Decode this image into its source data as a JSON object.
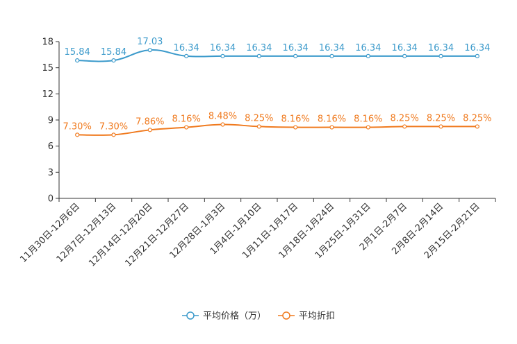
{
  "chart_data": {
    "type": "line",
    "title": "",
    "xlabel": "",
    "ylabel": "",
    "ylim": [
      0,
      18
    ],
    "yticks": [
      0,
      3,
      6,
      9,
      12,
      15,
      18
    ],
    "categories": [
      "11月30日-12月6日",
      "12月7日-12月13日",
      "12月14日-12月20日",
      "12月21日-12月27日",
      "12月28日-1月3日",
      "1月4日-1月10日",
      "1月11日-1月17日",
      "1月18日-1月24日",
      "1月25日-1月31日",
      "2月1日-2月7日",
      "2月8日-2月14日",
      "2月15日-2月21日"
    ],
    "series": [
      {
        "name": "平均价格（万）",
        "color": "#3b9acb",
        "values": [
          15.84,
          15.84,
          17.03,
          16.34,
          16.34,
          16.34,
          16.34,
          16.34,
          16.34,
          16.34,
          16.34,
          16.34
        ],
        "labels": [
          "15.84",
          "15.84",
          "17.03",
          "16.34",
          "16.34",
          "16.34",
          "16.34",
          "16.34",
          "16.34",
          "16.34",
          "16.34",
          "16.34"
        ]
      },
      {
        "name": "平均折扣",
        "color": "#f07a1e",
        "values": [
          7.3,
          7.3,
          7.86,
          8.16,
          8.48,
          8.25,
          8.16,
          8.16,
          8.16,
          8.25,
          8.25,
          8.25
        ],
        "labels": [
          "7.30%",
          "7.30%",
          "7.86%",
          "8.16%",
          "8.48%",
          "8.25%",
          "8.16%",
          "8.16%",
          "8.16%",
          "8.25%",
          "8.25%",
          "8.25%"
        ]
      }
    ],
    "grid": false,
    "legend_position": "bottom-center"
  }
}
